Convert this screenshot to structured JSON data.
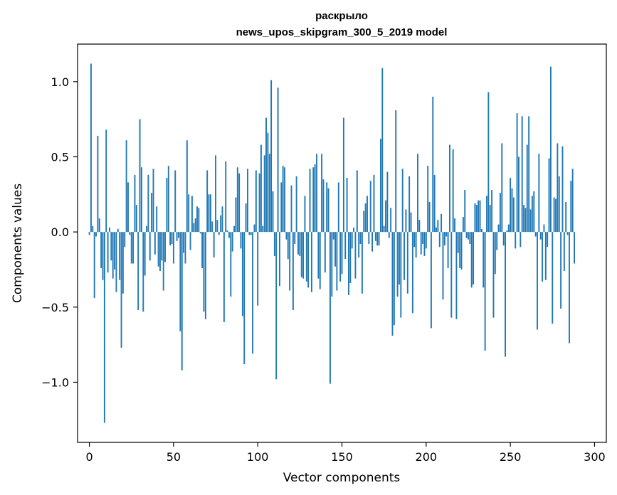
{
  "chart_data": {
    "type": "bar",
    "title": "раскрыло",
    "subtitle": "news_upos_skipgram_300_5_2019 model",
    "xlabel": "Vector components",
    "ylabel": "Components values",
    "xlim": [
      -7,
      307
    ],
    "ylim": [
      -1.4,
      1.25
    ],
    "x_ticks": [
      0,
      50,
      100,
      150,
      200,
      250,
      300
    ],
    "y_ticks": [
      -1.0,
      -0.5,
      0.0,
      0.5,
      1.0
    ],
    "x_tick_labels": [
      "0",
      "50",
      "100",
      "150",
      "200",
      "250",
      "300"
    ],
    "y_tick_labels": [
      "−1.0",
      "−0.5",
      "0.0",
      "0.5",
      "1.0"
    ],
    "grid": false,
    "bar_color": "#1f77b4",
    "values": [
      -0.02,
      1.12,
      0.04,
      -0.44,
      -0.03,
      0.64,
      0.09,
      -0.24,
      -0.32,
      -1.27,
      0.68,
      -0.27,
      0.03,
      -0.19,
      -0.31,
      -0.25,
      -0.4,
      0.02,
      -0.32,
      -0.77,
      -0.41,
      -0.1,
      0.61,
      0.33,
      -0.02,
      -0.21,
      -0.21,
      0.38,
      0.18,
      -0.52,
      0.75,
      0.43,
      -0.53,
      -0.29,
      0.04,
      0.38,
      -0.19,
      0.26,
      0.42,
      -0.15,
      0.17,
      -0.23,
      -0.26,
      -0.19,
      -0.39,
      -0.2,
      0.36,
      0.44,
      -0.09,
      -0.08,
      -0.21,
      0.41,
      -0.06,
      -0.04,
      -0.66,
      -0.92,
      -0.14,
      -0.21,
      0.61,
      0.25,
      -0.12,
      0.24,
      0.06,
      0.09,
      0.17,
      0.16,
      -0.01,
      -0.24,
      -0.53,
      -0.58,
      0.41,
      0.25,
      0.25,
      0.07,
      -0.17,
      0.51,
      0.08,
      -0.02,
      0.11,
      0.17,
      -0.6,
      0.47,
      0.01,
      -0.04,
      -0.43,
      -0.13,
      0.04,
      0.23,
      0.43,
      0.39,
      -0.11,
      -0.56,
      -0.88,
      0.19,
      0.42,
      -0.02,
      -0.02,
      -0.81,
      0.05,
      0.41,
      -0.49,
      0.39,
      0.58,
      0.04,
      0.51,
      0.76,
      0.66,
      0.52,
      1.01,
      0.27,
      -0.16,
      -0.98,
      0.96,
      -0.36,
      0.33,
      0.44,
      0.43,
      -0.05,
      -0.18,
      -0.39,
      0.31,
      -0.52,
      -0.08,
      0.37,
      -0.15,
      -0.16,
      -0.3,
      -0.31,
      0.24,
      -0.33,
      -0.37,
      0.42,
      -0.4,
      0.43,
      0.45,
      0.52,
      -0.31,
      -0.38,
      0.52,
      0.35,
      -0.27,
      0.33,
      0.29,
      -1.01,
      -0.43,
      -0.05,
      -0.23,
      -0.39,
      0.33,
      -0.33,
      -0.28,
      0.76,
      -0.18,
      0.36,
      -0.42,
      -0.34,
      -0.11,
      0.03,
      -0.31,
      0.41,
      -0.17,
      -0.08,
      -0.41,
      0.14,
      0.19,
      0.24,
      -0.08,
      0.34,
      -0.13,
      0.38,
      -0.06,
      -0.09,
      -0.09,
      0.62,
      1.09,
      0.04,
      0.21,
      0.4,
      -0.04,
      0.16,
      -0.69,
      -0.62,
      0.81,
      -0.43,
      -0.35,
      -0.57,
      0.42,
      -0.32,
      0.15,
      -0.41,
      0.37,
      0.13,
      -0.54,
      -0.1,
      -0.17,
      0.52,
      0.08,
      -0.15,
      -0.08,
      -0.16,
      -0.11,
      0.44,
      0.2,
      -0.64,
      0.9,
      0.38,
      0.03,
      0.08,
      -0.1,
      0.12,
      -0.45,
      -0.09,
      -0.03,
      -0.24,
      0.58,
      -0.57,
      0.55,
      0.09,
      -0.58,
      -0.14,
      -0.24,
      -0.25,
      0.1,
      0.28,
      -0.04,
      -0.05,
      -0.08,
      -0.37,
      -0.35,
      0.19,
      0.18,
      0.21,
      0.21,
      0.02,
      -0.37,
      -0.79,
      0.24,
      0.93,
      0.18,
      0.28,
      -0.57,
      -0.28,
      -0.12,
      0.05,
      0.26,
      0.59,
      -0.09,
      -0.83,
      0.01,
      0.05,
      0.36,
      0.29,
      0.23,
      -0.11,
      0.79,
      0.5,
      -0.1,
      0.77,
      0.18,
      0.16,
      0.58,
      0.77,
      0.15,
      0.24,
      0.27,
      -0.03,
      -0.65,
      0.52,
      -0.05,
      -0.33,
      0.05,
      -0.32,
      -0.1,
      0.49,
      1.1,
      -0.61,
      0.23,
      0.22,
      0.59,
      0.37,
      -0.51,
      0.57,
      -0.26,
      0.2,
      -0.02,
      -0.74,
      0.34,
      0.42,
      -0.21,
      0.0
    ]
  }
}
